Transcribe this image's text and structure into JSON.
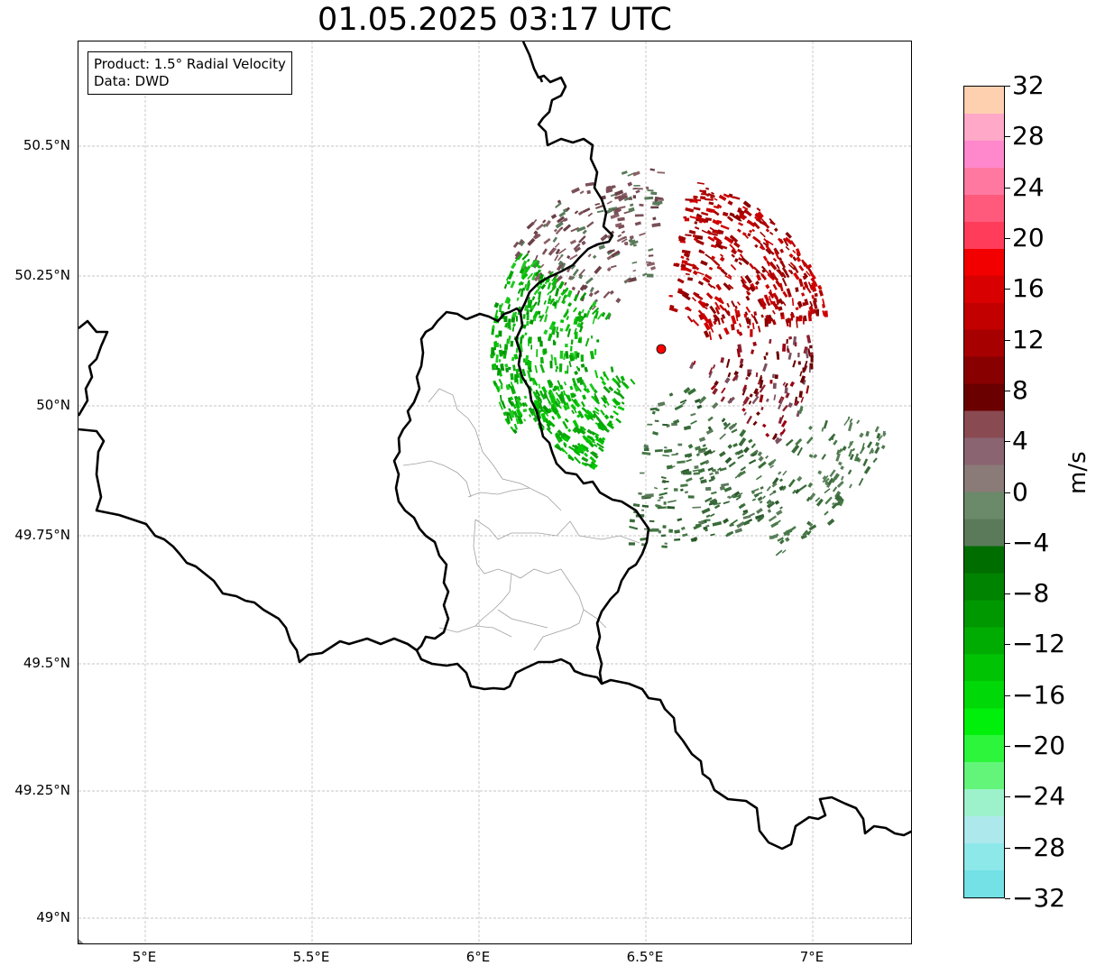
{
  "title": "01.05.2025 03:17 UTC",
  "info": {
    "product": "Product: 1.5° Radial Velocity",
    "data": "Data: DWD"
  },
  "axes": {
    "lat_ticks": [
      "50.5°N",
      "50.25°N",
      "50°N",
      "49.75°N",
      "49.5°N",
      "49.25°N",
      "49°N"
    ],
    "lon_ticks": [
      "5°E",
      "5.5°E",
      "6°E",
      "6.5°E",
      "7°E"
    ],
    "lon_range": [
      4.8,
      7.3
    ],
    "lat_range": [
      48.95,
      50.7
    ]
  },
  "colorbar": {
    "label": "m/s",
    "ticks": [
      "32",
      "28",
      "24",
      "20",
      "16",
      "12",
      "8",
      "4",
      "0",
      "−4",
      "−8",
      "−12",
      "−16",
      "−20",
      "−24",
      "−28",
      "−32"
    ],
    "range": [
      -32,
      32
    ],
    "colors_bottom_to_top": [
      "#73e1e6",
      "#8de8ea",
      "#ade8ec",
      "#9df2cb",
      "#63f57a",
      "#2df53b",
      "#00f00c",
      "#00d807",
      "#00c304",
      "#00ac02",
      "#009801",
      "#008300",
      "#006d00",
      "#5a7a5a",
      "#6a8a6a",
      "#8a7a78",
      "#8a6470",
      "#8a4a52",
      "#6a0000",
      "#880000",
      "#a60000",
      "#c20000",
      "#d80000",
      "#f20000",
      "#ff3c5a",
      "#ff5a7c",
      "#ff78a0",
      "#ff88cc",
      "#ffa8c8",
      "#ffd0b0"
    ]
  },
  "radar_site": {
    "label": "radar-site",
    "lon": 6.547,
    "lat": 50.11
  },
  "colors": {
    "border": "#000000",
    "grid": "#b4b4b4",
    "admin": "#a0a0a0",
    "site": "#ff0000"
  }
}
